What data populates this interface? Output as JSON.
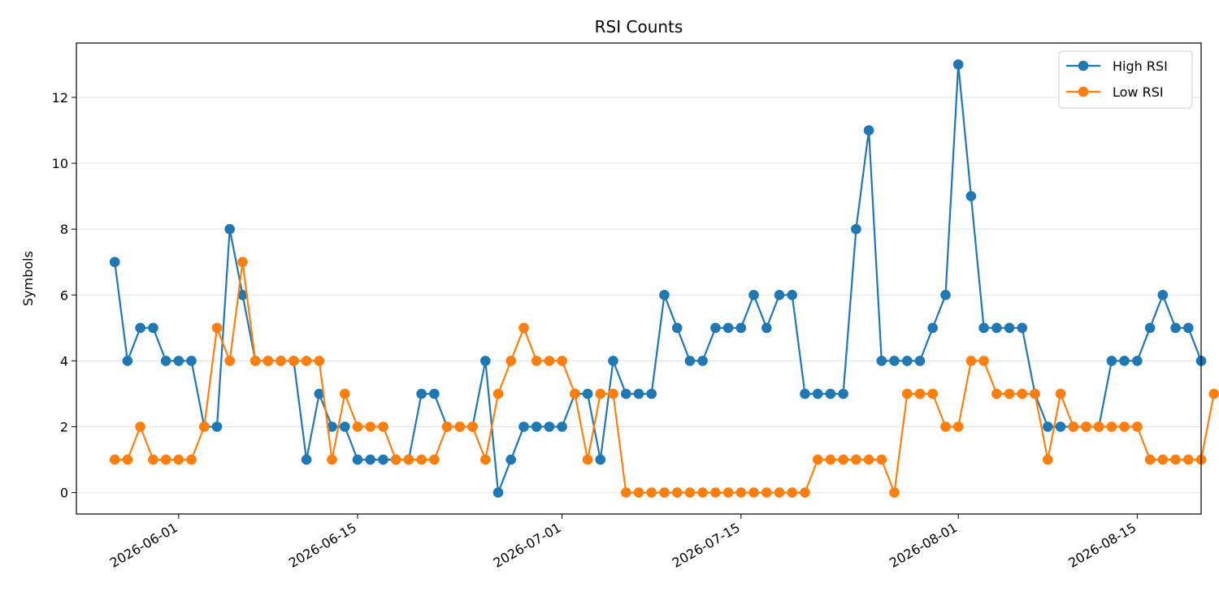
{
  "chart_data": {
    "type": "line",
    "title": "RSI Counts",
    "xlabel": "",
    "ylabel": "Symbols",
    "x_start": "2026-05-27",
    "x_end": "2026-08-18",
    "xlim": [
      "2026-05-24",
      "2026-08-20"
    ],
    "ylim": [
      -0.65,
      13.65
    ],
    "x_ticks": [
      "2026-06-01",
      "2026-06-15",
      "2026-07-01",
      "2026-07-15",
      "2026-08-01",
      "2026-08-15"
    ],
    "y_ticks": [
      0,
      2,
      4,
      6,
      8,
      10,
      12
    ],
    "grid": "horizontal",
    "legend_position": "top-right",
    "series": [
      {
        "name": "High RSI",
        "color": "#1f77b4",
        "values": [
          7,
          4,
          5,
          5,
          4,
          4,
          4,
          2,
          2,
          8,
          6,
          4,
          4,
          4,
          4,
          1,
          3,
          2,
          2,
          1,
          1,
          1,
          1,
          1,
          3,
          3,
          2,
          2,
          2,
          4,
          0,
          1,
          2,
          2,
          2,
          2,
          3,
          3,
          1,
          4,
          3,
          3,
          3,
          6,
          5,
          4,
          4,
          5,
          5,
          5,
          6,
          5,
          6,
          6,
          3,
          3,
          3,
          3,
          8,
          11,
          4,
          4,
          4,
          4,
          5,
          6,
          13,
          9,
          5,
          5,
          5,
          5,
          3,
          2,
          2,
          2,
          2,
          2,
          4,
          4,
          4,
          5,
          6,
          5,
          5,
          4
        ]
      },
      {
        "name": "Low RSI",
        "color": "#ff7f0e",
        "values": [
          1,
          1,
          2,
          1,
          1,
          1,
          1,
          2,
          5,
          4,
          7,
          4,
          4,
          4,
          4,
          4,
          4,
          1,
          3,
          2,
          2,
          2,
          1,
          1,
          1,
          1,
          2,
          2,
          2,
          1,
          3,
          4,
          5,
          4,
          4,
          4,
          3,
          1,
          3,
          3,
          0,
          0,
          0,
          0,
          0,
          0,
          0,
          0,
          0,
          0,
          0,
          0,
          0,
          0,
          0,
          1,
          1,
          1,
          1,
          1,
          1,
          0,
          3,
          3,
          3,
          2,
          2,
          4,
          4,
          3,
          3,
          3,
          3,
          1,
          3,
          2,
          2,
          2,
          2,
          2,
          2,
          1,
          1,
          1,
          1,
          1,
          3
        ]
      }
    ]
  }
}
